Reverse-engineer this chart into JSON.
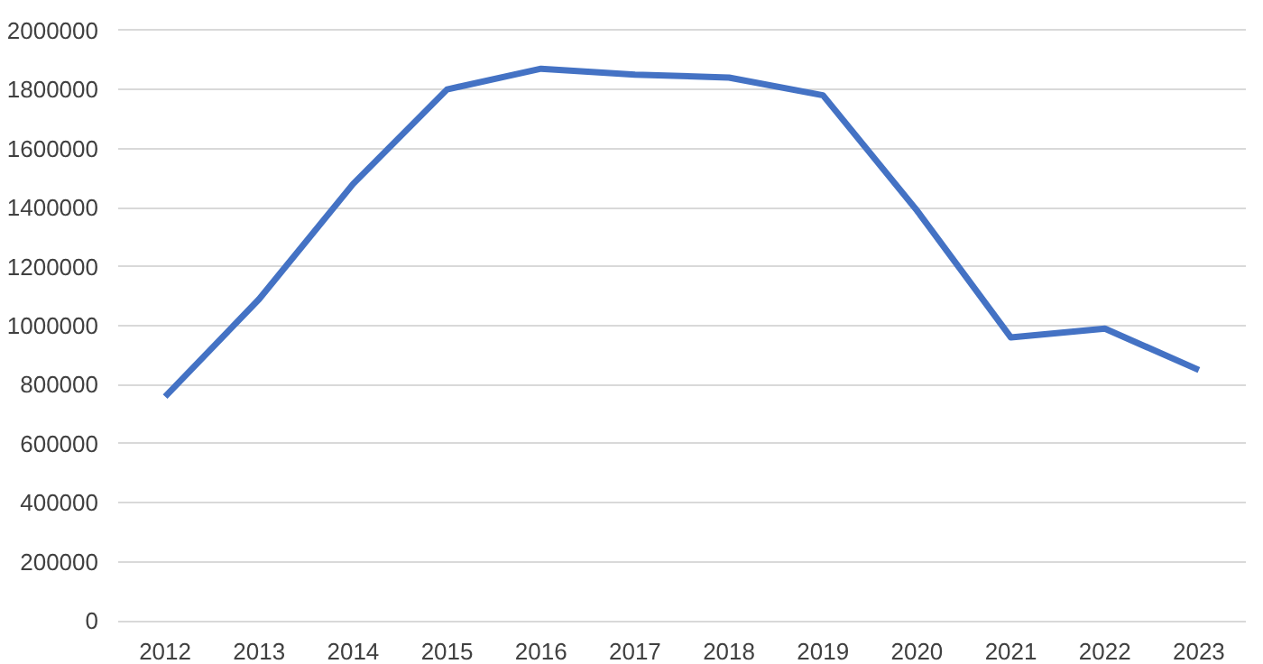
{
  "chart_data": {
    "type": "line",
    "categories": [
      "2012",
      "2013",
      "2014",
      "2015",
      "2016",
      "2017",
      "2018",
      "2019",
      "2020",
      "2021",
      "2022",
      "2023"
    ],
    "series": [
      {
        "color": "#4472c4",
        "values": [
          760000,
          1090000,
          1480000,
          1800000,
          1870000,
          1850000,
          1840000,
          1780000,
          1390000,
          960000,
          990000,
          850000
        ]
      }
    ],
    "ylim": [
      0,
      2000000
    ],
    "yticks": [
      0,
      200000,
      400000,
      600000,
      800000,
      1000000,
      1200000,
      1400000,
      1600000,
      1800000,
      2000000
    ],
    "grid": "y",
    "marker": "none",
    "line_style": "solid"
  }
}
